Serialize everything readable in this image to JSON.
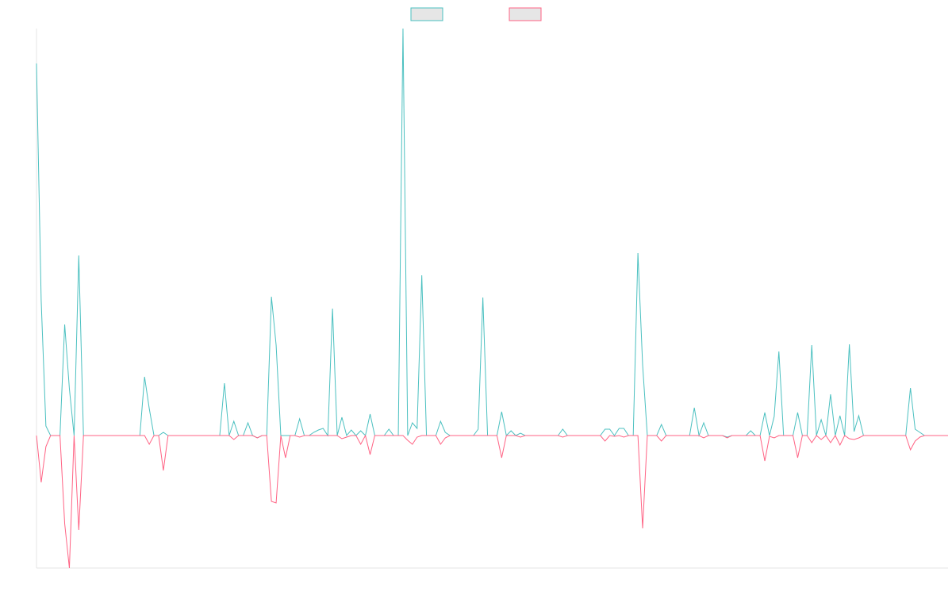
{
  "chart_data": {
    "type": "line",
    "ylim": [
      -16.7,
      51.3
    ],
    "legend": "top",
    "series": [
      {
        "color": "#4bc0c0",
        "values": [
          46.9,
          17,
          1.2,
          0,
          0,
          0,
          14,
          5.9,
          0,
          22.7,
          0,
          0,
          0,
          0,
          0,
          0,
          0,
          0,
          0,
          0,
          0,
          0,
          0,
          7.4,
          3.4,
          0,
          0,
          0.4,
          0,
          0,
          0,
          0,
          0,
          0,
          0,
          0,
          0,
          0,
          0,
          0,
          6.6,
          0,
          1.8,
          0,
          0,
          1.6,
          0,
          -0.3,
          0,
          0,
          17.5,
          11.4,
          0,
          0,
          0,
          0,
          2.1,
          0,
          0,
          0.4,
          0.7,
          0.9,
          0,
          16,
          0,
          2.3,
          0,
          0.7,
          0,
          0.6,
          0,
          2.7,
          0,
          0,
          0,
          0.8,
          0,
          0,
          51.3,
          0,
          1.6,
          0.9,
          20.2,
          0,
          0,
          0,
          1.8,
          0.4,
          0,
          0,
          0,
          0,
          0,
          0,
          0.8,
          17.4,
          0,
          0,
          0,
          3,
          0,
          0.6,
          0,
          0.3,
          0,
          0,
          0,
          0,
          0,
          0,
          0,
          0,
          0.8,
          0,
          0,
          0,
          0,
          0,
          0,
          0,
          0,
          0.8,
          0.8,
          0,
          0.9,
          0.9,
          0,
          0,
          23,
          8.9,
          0,
          0,
          0,
          1.4,
          0,
          0,
          0,
          0,
          0,
          0,
          3.5,
          0,
          1.6,
          0,
          0,
          0,
          0,
          -0.2,
          0,
          0,
          0,
          0,
          0.6,
          0,
          0,
          2.9,
          0,
          2.4,
          10.6,
          0,
          0,
          0,
          2.9,
          0,
          0,
          11.4,
          0,
          2,
          0,
          5.2,
          0,
          2.5,
          0,
          11.5,
          0.5,
          2.5,
          0,
          0,
          0,
          0,
          0,
          0,
          0,
          0,
          0,
          0,
          6,
          0.8,
          0.4,
          0,
          0,
          0,
          0,
          0,
          0
        ]
      },
      {
        "color": "#ff6384",
        "values": [
          0,
          -5.9,
          -1.4,
          0,
          0,
          0,
          -11.1,
          -16.7,
          0,
          -11.9,
          0,
          0,
          0,
          0,
          0,
          0,
          0,
          0,
          0,
          0,
          0,
          0,
          0,
          0,
          -1.1,
          0,
          0,
          -4.4,
          0,
          0,
          0,
          0,
          0,
          0,
          0,
          0,
          0,
          0,
          0,
          0,
          0,
          0,
          -0.5,
          0,
          0,
          0,
          0,
          -0.3,
          0,
          0,
          -8.3,
          -8.5,
          0,
          -2.8,
          0,
          0,
          -0.2,
          0,
          0,
          0,
          0,
          0,
          0,
          0,
          0,
          -0.4,
          -0.2,
          0,
          0,
          -1.1,
          0,
          -2.4,
          0,
          0,
          0,
          0,
          0,
          0,
          0,
          -0.6,
          -1.1,
          -0.2,
          0,
          0,
          0,
          0,
          -1.1,
          -0.3,
          0,
          0,
          0,
          0,
          0,
          0,
          0,
          0,
          0,
          0,
          0,
          -2.8,
          0,
          0,
          0,
          -0.2,
          0,
          0,
          0,
          0,
          0,
          0,
          0,
          0,
          -0.2,
          0,
          0,
          0,
          0,
          0,
          0,
          0,
          0,
          -0.7,
          0,
          -0.1,
          0,
          -0.2,
          0,
          0,
          0,
          -11.7,
          0,
          0,
          0,
          -0.7,
          0,
          0,
          0,
          0,
          0,
          0,
          0,
          0,
          -0.3,
          0,
          0,
          0,
          0,
          -0.3,
          0,
          0,
          0,
          0,
          0,
          0,
          0,
          -3.2,
          -0.1,
          -0.3,
          0,
          0,
          0,
          0,
          -2.8,
          0,
          0,
          -0.9,
          0,
          -0.5,
          0,
          -0.9,
          0,
          -1.2,
          0,
          -0.4,
          -0.5,
          -0.3,
          0,
          0,
          0,
          0,
          0,
          0,
          0,
          0,
          0,
          0,
          -1.8,
          -0.7,
          -0.2,
          0,
          0,
          0,
          0,
          0,
          0
        ]
      }
    ]
  }
}
